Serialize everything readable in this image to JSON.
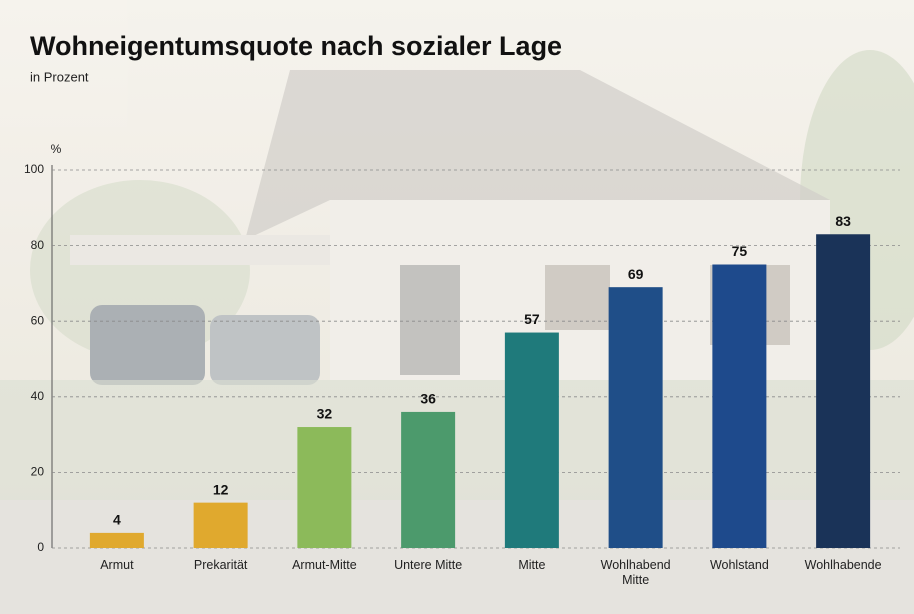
{
  "chart_data": {
    "type": "bar",
    "title": "Wohneigentumsquote nach sozialer Lage",
    "subtitle": "in Prozent",
    "y_label": "%",
    "categories": [
      "Armut",
      "Prekarität",
      "Armut-Mitte",
      "Untere Mitte",
      "Mitte",
      "Wohlhabend Mitte",
      "Wohlstand",
      "Wohlhabende"
    ],
    "values": [
      4,
      12,
      32,
      36,
      57,
      69,
      75,
      83
    ],
    "colors": [
      "#e0a92e",
      "#e0a92e",
      "#8cba5a",
      "#4c9a6c",
      "#1f7a7b",
      "#1f4e88",
      "#1e4a8c",
      "#1a3358"
    ],
    "ylim": [
      0,
      100
    ],
    "yticks": [
      0,
      20,
      40,
      60,
      80,
      100
    ],
    "grid": true
  }
}
